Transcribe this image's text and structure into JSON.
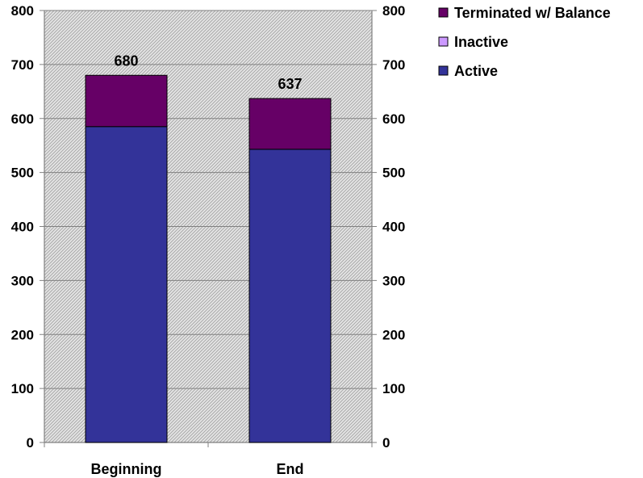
{
  "chart_data": {
    "type": "bar",
    "stacked": true,
    "categories": [
      "Beginning",
      "End"
    ],
    "series": [
      {
        "name": "Active",
        "values": [
          585,
          543
        ],
        "color": "#333399"
      },
      {
        "name": "Inactive",
        "values": [
          0,
          0
        ],
        "color": "#CC99FF"
      },
      {
        "name": "Terminated w/ Balance",
        "values": [
          95,
          94
        ],
        "color": "#660066"
      }
    ],
    "totals": [
      680,
      637
    ],
    "ylim": [
      0,
      800
    ],
    "yticks": [
      0,
      100,
      200,
      300,
      400,
      500,
      600,
      700,
      800
    ],
    "secondary_axis": true,
    "grid": true,
    "legend": "top-right",
    "plot_background": "#c0c0c0"
  }
}
